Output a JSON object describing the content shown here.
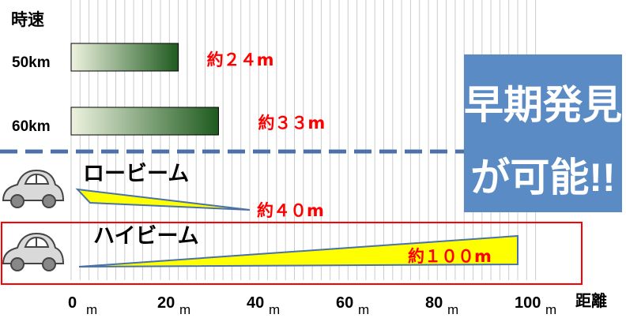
{
  "chart_data": {
    "type": "bar",
    "speed_axis_label": "時速",
    "x_axis_label": "距離",
    "x_unit": "m",
    "x_ticks": [
      0,
      20,
      40,
      60,
      80,
      100
    ],
    "x_range": [
      0,
      100
    ],
    "gridline_step": 2,
    "braking": [
      {
        "speed": "50km",
        "distance": 24,
        "label": "約２４m"
      },
      {
        "speed": "60km",
        "distance": 33,
        "label": "約３３m"
      }
    ],
    "beams": [
      {
        "name": "ロービーム",
        "reach": 40,
        "label": "約４０m"
      },
      {
        "name": "ハイビーム",
        "reach": 100,
        "label": "約１００m"
      }
    ],
    "callout": {
      "line1": "早期発見",
      "line2": "が可能!!"
    },
    "colors": {
      "bar_dark": "#1e5a1e",
      "bar_light": "#eef3e0",
      "beam_fill": "#ffff00",
      "label_red": "#ff0000",
      "divider": "#4a72a8",
      "callout_bg": "#5b8bc5",
      "highlight_border": "#ff0000",
      "grid": "#cccccc"
    }
  }
}
